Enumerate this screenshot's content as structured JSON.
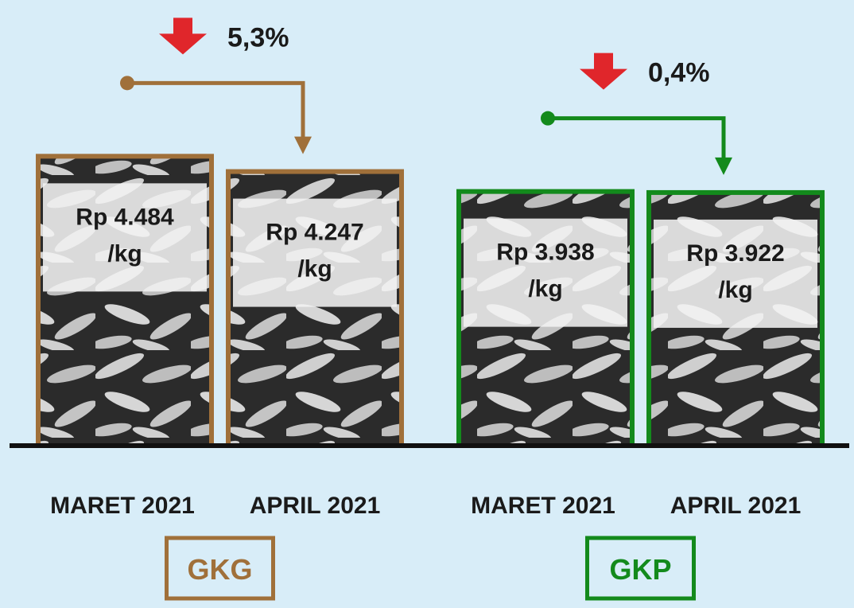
{
  "chart_data": {
    "type": "bar",
    "unit_suffix": "/kg",
    "groups": [
      {
        "name": "GKG",
        "color": "#a0703a",
        "change_label": "5,3%",
        "direction": "down",
        "bars": [
          {
            "category": "MARET 2021",
            "value": 4484,
            "label": "Rp 4.484"
          },
          {
            "category": "APRIL 2021",
            "value": 4247,
            "label": "Rp 4.247"
          }
        ]
      },
      {
        "name": "GKP",
        "color": "#138a1c",
        "change_label": "0,4%",
        "direction": "down",
        "bars": [
          {
            "category": "MARET 2021",
            "value": 3938,
            "label": "Rp 3.938"
          },
          {
            "category": "APRIL 2021",
            "value": 3922,
            "label": "Rp 3.922"
          }
        ]
      }
    ],
    "colors": {
      "background": "#d8edf8",
      "baseline": "#111111",
      "down_arrow": "#e0262b",
      "bar_fill": "#2b2b2b",
      "grain": "#cfcfcf",
      "label_box": "#f2f2f2"
    }
  }
}
